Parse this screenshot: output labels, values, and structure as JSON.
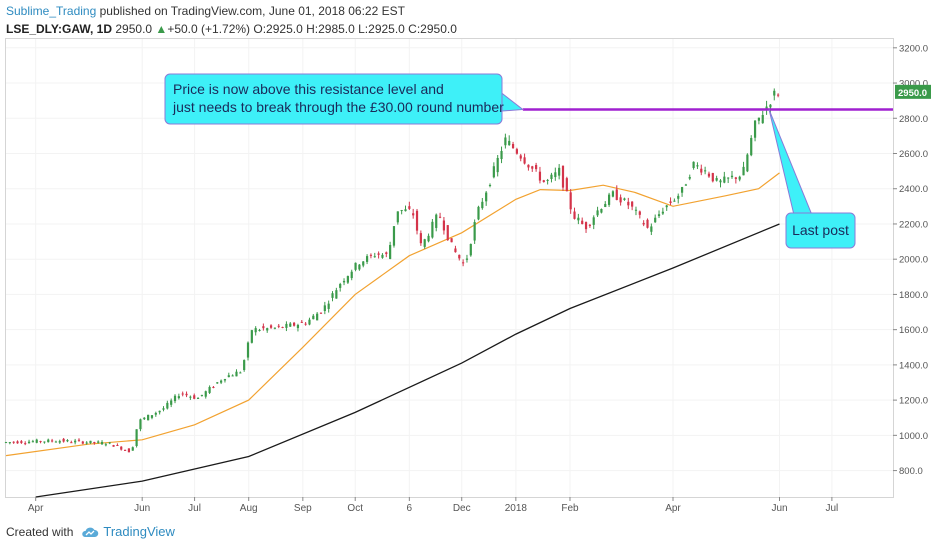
{
  "header": {
    "author": "Sublime_Trading",
    "published": "published on TradingView.com, June 01, 2018 06:22 EST",
    "symbol": "LSE_DLY:GAW, 1D",
    "last": "2950.0",
    "arrow": "▲",
    "change": "+50.0 (+1.72%)",
    "ohlc": "O:2925.0 H:2985.0 L:2925.0 C:2950.0"
  },
  "footer": {
    "created_with": "Created with",
    "brand": "TradingView",
    "logo_icon": "tradingview-cloud-icon"
  },
  "colors": {
    "up": "#3a9a4a",
    "down": "#d4344a",
    "ma_short": "#f2a230",
    "ma_long": "#1a1a1a",
    "resistance": "#a020d0",
    "callout_fill": "#3ef0f8",
    "callout_border": "#8a7ad8",
    "price_label": "#3a9a4a"
  },
  "chart_data": {
    "type": "candlestick",
    "symbol": "LSE_DLY:GAW",
    "timeframe": "1D",
    "ylim": [
      650,
      3250
    ],
    "y_ticks": [
      800,
      1000,
      1200,
      1400,
      1600,
      1800,
      2000,
      2200,
      2400,
      2600,
      2800,
      3000,
      3200
    ],
    "y_tick_labels": [
      "800.0",
      "1000.0",
      "1200.0",
      "1400.0",
      "1600.0",
      "1800.0",
      "2000.0",
      "2200.0",
      "2400.0",
      "2600.0",
      "2800.0",
      "3000.0",
      "3200.0"
    ],
    "x_start": "2017-03-15",
    "x_end": "2018-08-05",
    "x_ticks": [
      {
        "date": "2017-04-01",
        "label": "Apr"
      },
      {
        "date": "2017-06-01",
        "label": "Jun"
      },
      {
        "date": "2017-07-01",
        "label": "Jul"
      },
      {
        "date": "2017-08-01",
        "label": "Aug"
      },
      {
        "date": "2017-09-01",
        "label": "Sep"
      },
      {
        "date": "2017-10-01",
        "label": "Oct"
      },
      {
        "date": "2017-11-01",
        "label": "6"
      },
      {
        "date": "2017-12-01",
        "label": "Dec"
      },
      {
        "date": "2018-01-01",
        "label": "2018"
      },
      {
        "date": "2018-02-01",
        "label": "Feb"
      },
      {
        "date": "2018-04-01",
        "label": "Apr"
      },
      {
        "date": "2018-06-01",
        "label": "Jun"
      },
      {
        "date": "2018-07-01",
        "label": "Jul"
      }
    ],
    "price_path": [
      [
        "2017-03-15",
        960
      ],
      [
        "2017-04-15",
        970
      ],
      [
        "2017-05-15",
        955
      ],
      [
        "2017-05-28",
        905
      ],
      [
        "2017-06-01",
        1080
      ],
      [
        "2017-06-15",
        1150
      ],
      [
        "2017-06-25",
        1240
      ],
      [
        "2017-07-05",
        1210
      ],
      [
        "2017-07-20",
        1330
      ],
      [
        "2017-07-30",
        1365
      ],
      [
        "2017-08-05",
        1600
      ],
      [
        "2017-08-20",
        1610
      ],
      [
        "2017-09-05",
        1640
      ],
      [
        "2017-09-15",
        1720
      ],
      [
        "2017-09-25",
        1870
      ],
      [
        "2017-10-05",
        1980
      ],
      [
        "2017-10-15",
        2030
      ],
      [
        "2017-10-22",
        2020
      ],
      [
        "2017-10-27",
        2280
      ],
      [
        "2017-11-05",
        2270
      ],
      [
        "2017-11-10",
        2070
      ],
      [
        "2017-11-20",
        2260
      ],
      [
        "2017-11-28",
        2060
      ],
      [
        "2017-12-05",
        1960
      ],
      [
        "2017-12-12",
        2260
      ],
      [
        "2017-12-20",
        2460
      ],
      [
        "2017-12-28",
        2680
      ],
      [
        "2018-01-05",
        2600
      ],
      [
        "2018-01-12",
        2520
      ],
      [
        "2018-01-20",
        2430
      ],
      [
        "2018-01-28",
        2500
      ],
      [
        "2018-02-05",
        2250
      ],
      [
        "2018-02-12",
        2180
      ],
      [
        "2018-02-20",
        2290
      ],
      [
        "2018-02-28",
        2370
      ],
      [
        "2018-03-10",
        2300
      ],
      [
        "2018-03-20",
        2170
      ],
      [
        "2018-03-28",
        2280
      ],
      [
        "2018-04-08",
        2380
      ],
      [
        "2018-04-15",
        2540
      ],
      [
        "2018-04-22",
        2500
      ],
      [
        "2018-04-29",
        2430
      ],
      [
        "2018-05-06",
        2460
      ],
      [
        "2018-05-13",
        2480
      ],
      [
        "2018-05-20",
        2760
      ],
      [
        "2018-05-27",
        2870
      ],
      [
        "2018-06-01",
        2950
      ]
    ],
    "ma_short": [
      [
        "2017-03-15",
        885
      ],
      [
        "2017-05-01",
        950
      ],
      [
        "2017-06-01",
        975
      ],
      [
        "2017-07-01",
        1060
      ],
      [
        "2017-08-01",
        1200
      ],
      [
        "2017-09-01",
        1500
      ],
      [
        "2017-10-01",
        1800
      ],
      [
        "2017-11-01",
        2020
      ],
      [
        "2017-12-01",
        2150
      ],
      [
        "2018-01-01",
        2340
      ],
      [
        "2018-01-15",
        2395
      ],
      [
        "2018-02-01",
        2390
      ],
      [
        "2018-02-20",
        2420
      ],
      [
        "2018-03-10",
        2380
      ],
      [
        "2018-04-01",
        2300
      ],
      [
        "2018-05-01",
        2360
      ],
      [
        "2018-05-20",
        2400
      ],
      [
        "2018-06-01",
        2490
      ]
    ],
    "ma_long": [
      [
        "2017-04-01",
        650
      ],
      [
        "2017-06-01",
        740
      ],
      [
        "2017-08-01",
        880
      ],
      [
        "2017-10-01",
        1130
      ],
      [
        "2017-12-01",
        1410
      ],
      [
        "2018-01-01",
        1575
      ],
      [
        "2018-02-01",
        1720
      ],
      [
        "2018-04-01",
        1950
      ],
      [
        "2018-06-01",
        2200
      ]
    ],
    "resistance_level": 2850,
    "resistance_start": "2018-01-05",
    "current_price": 2950,
    "current_price_label": "2950.0",
    "annotations": [
      {
        "text_line1": "Price is now above this resistance level and",
        "text_line2": "just needs to break through the £30.00 round number",
        "date": "2018-01-05",
        "price": 2850
      },
      {
        "text": "Last post",
        "date": "2018-05-26",
        "price": 2850
      }
    ]
  }
}
